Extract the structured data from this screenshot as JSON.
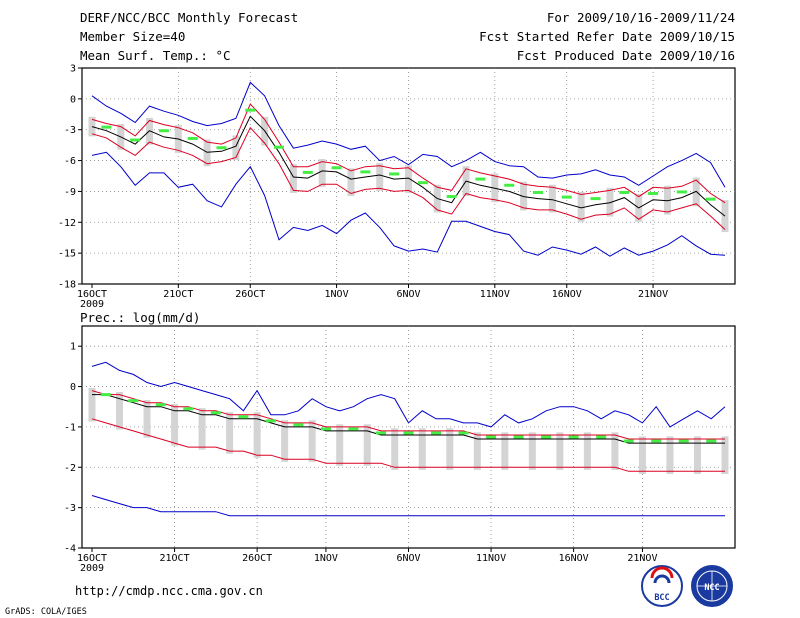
{
  "header": {
    "title": "DERF/NCC/BCC Monthly Forecast",
    "member_size": "Member Size=40",
    "variable": "Mean Surf. Temp.: °C",
    "period": "For 2009/10/16-2009/11/24",
    "started": "Fcst Started Refer Date 2009/10/15",
    "produced": "Fcst Produced Date 2009/10/16"
  },
  "footer": {
    "url": "http://cmdp.ncc.cma.gov.cn",
    "grads": "GrADS: COLA/IGES",
    "logo_bcc": "BCC",
    "logo_ncc": "NCC"
  },
  "colors": {
    "envelope": "#0000cc",
    "spread": "#dd0022",
    "mean": "#000000",
    "box": "#d4d4d4",
    "obs": "#44ee44",
    "grid": "#888888"
  },
  "chart_data": [
    {
      "type": "line",
      "title": "Mean Surf. Temp.: °C",
      "xlabel": "",
      "ylabel": "°C",
      "ylim": [
        -18,
        3
      ],
      "yticks": [
        "3",
        "0",
        "-3",
        "-6",
        "-9",
        "-12",
        "-15",
        "-18"
      ],
      "xticks": [
        "16OCT",
        "21OCT",
        "26OCT",
        "1NOV",
        "6NOV",
        "11NOV",
        "16NOV",
        "21NOV"
      ],
      "x_year": "2009",
      "grid": true,
      "days": 40,
      "series": [
        {
          "name": "max",
          "values": [
            0.3,
            -0.7,
            -1.4,
            -2.3,
            -0.7,
            -1.2,
            -1.6,
            -2.2,
            -2.6,
            -2.4,
            -1.9,
            1.6,
            0.3,
            -2.6,
            -4.8,
            -4.5,
            -4.1,
            -4.4,
            -4.9,
            -4.6,
            -6.0,
            -5.6,
            -6.4,
            -5.4,
            -5.6,
            -6.6,
            -6.0,
            -5.2,
            -6.1,
            -6.5,
            -6.6,
            -7.6,
            -7.7,
            -7.4,
            -7.3,
            -6.9,
            -7.4,
            -7.6,
            -8.4,
            -7.5,
            -6.6,
            -6.0,
            -5.3,
            -6.2,
            -8.6
          ]
        },
        {
          "name": "upper",
          "values": [
            -2.0,
            -2.4,
            -2.7,
            -3.6,
            -2.1,
            -2.5,
            -2.8,
            -3.3,
            -4.2,
            -4.4,
            -3.8,
            -0.5,
            -2.0,
            -4.2,
            -6.6,
            -6.6,
            -6.1,
            -6.3,
            -7.0,
            -6.6,
            -6.5,
            -6.8,
            -6.7,
            -7.7,
            -8.6,
            -8.9,
            -6.8,
            -7.2,
            -7.5,
            -7.8,
            -8.3,
            -8.5,
            -8.6,
            -8.9,
            -9.3,
            -9.1,
            -8.9,
            -8.6,
            -9.5,
            -8.6,
            -8.7,
            -8.5,
            -7.9,
            -9.2,
            -10.1
          ]
        },
        {
          "name": "mean",
          "values": [
            -2.7,
            -3.1,
            -3.7,
            -4.4,
            -3.1,
            -3.7,
            -3.9,
            -4.4,
            -5.2,
            -5.1,
            -4.6,
            -1.7,
            -3.1,
            -5.2,
            -7.6,
            -7.7,
            -7.0,
            -7.1,
            -7.8,
            -7.6,
            -7.4,
            -7.8,
            -7.7,
            -8.6,
            -9.7,
            -10.1,
            -8.0,
            -8.4,
            -8.7,
            -9.0,
            -9.5,
            -9.7,
            -9.8,
            -10.2,
            -10.6,
            -10.3,
            -10.1,
            -9.6,
            -10.6,
            -9.8,
            -9.9,
            -9.6,
            -9.0,
            -10.3,
            -11.4
          ]
        },
        {
          "name": "lower",
          "values": [
            -3.4,
            -3.8,
            -4.7,
            -5.5,
            -4.2,
            -4.7,
            -5.0,
            -5.5,
            -6.3,
            -6.1,
            -5.7,
            -2.8,
            -4.3,
            -6.3,
            -8.9,
            -9.0,
            -8.3,
            -8.3,
            -9.2,
            -8.8,
            -8.7,
            -9.0,
            -8.9,
            -9.6,
            -10.8,
            -11.2,
            -9.2,
            -9.6,
            -9.8,
            -10.1,
            -10.6,
            -10.8,
            -10.8,
            -11.2,
            -11.7,
            -11.3,
            -11.2,
            -10.6,
            -11.7,
            -10.8,
            -11.0,
            -10.6,
            -10.2,
            -11.4,
            -12.7
          ]
        },
        {
          "name": "min",
          "values": [
            -5.5,
            -5.2,
            -6.6,
            -8.4,
            -7.2,
            -7.2,
            -8.6,
            -8.3,
            -9.9,
            -10.5,
            -8.3,
            -6.6,
            -9.4,
            -13.7,
            -12.5,
            -12.8,
            -12.3,
            -13.1,
            -11.8,
            -11.1,
            -12.5,
            -14.3,
            -14.8,
            -14.6,
            -14.9,
            -11.9,
            -11.9,
            -12.4,
            -12.9,
            -13.2,
            -14.8,
            -15.2,
            -14.4,
            -14.7,
            -15.1,
            -14.4,
            -15.3,
            -14.5,
            -15.2,
            -14.8,
            -14.2,
            -13.3,
            -14.3,
            -15.1,
            -15.2
          ]
        }
      ]
    },
    {
      "type": "line",
      "title": "Prec.: log(mm/d)",
      "xlabel": "",
      "ylabel": "log(mm/d)",
      "ylim": [
        -4,
        1.5
      ],
      "yticks": [
        "1",
        "0",
        "-1",
        "-2",
        "-3",
        "-4"
      ],
      "xticks": [
        "16OCT",
        "21OCT",
        "26OCT",
        "1NOV",
        "6NOV",
        "11NOV",
        "16NOV",
        "21NOV"
      ],
      "x_year": "2009",
      "grid": true,
      "days": 40,
      "series": [
        {
          "name": "max",
          "values": [
            0.5,
            0.6,
            0.4,
            0.3,
            0.1,
            0.0,
            0.1,
            0.0,
            -0.1,
            -0.2,
            -0.3,
            -0.6,
            -0.1,
            -0.7,
            -0.7,
            -0.6,
            -0.3,
            -0.5,
            -0.6,
            -0.5,
            -0.3,
            -0.2,
            -0.3,
            -0.9,
            -0.6,
            -0.8,
            -0.8,
            -0.9,
            -0.9,
            -1.0,
            -0.7,
            -0.9,
            -0.8,
            -0.6,
            -0.5,
            -0.5,
            -0.6,
            -0.8,
            -0.6,
            -0.7,
            -0.9,
            -0.5,
            -1.0,
            -0.8,
            -0.6,
            -0.8,
            -0.5
          ]
        },
        {
          "name": "upper",
          "values": [
            -0.1,
            -0.2,
            -0.2,
            -0.3,
            -0.4,
            -0.4,
            -0.5,
            -0.5,
            -0.6,
            -0.6,
            -0.7,
            -0.7,
            -0.7,
            -0.8,
            -0.9,
            -0.9,
            -0.9,
            -1.0,
            -1.0,
            -1.0,
            -1.0,
            -1.1,
            -1.1,
            -1.1,
            -1.1,
            -1.1,
            -1.1,
            -1.1,
            -1.2,
            -1.2,
            -1.2,
            -1.2,
            -1.2,
            -1.2,
            -1.2,
            -1.2,
            -1.2,
            -1.2,
            -1.2,
            -1.3,
            -1.3,
            -1.3,
            -1.3,
            -1.3,
            -1.3,
            -1.3,
            -1.3
          ]
        },
        {
          "name": "mean",
          "values": [
            -0.2,
            -0.2,
            -0.3,
            -0.4,
            -0.5,
            -0.5,
            -0.6,
            -0.6,
            -0.7,
            -0.7,
            -0.8,
            -0.8,
            -0.8,
            -0.9,
            -1.0,
            -1.0,
            -1.0,
            -1.1,
            -1.1,
            -1.1,
            -1.1,
            -1.2,
            -1.2,
            -1.2,
            -1.2,
            -1.2,
            -1.2,
            -1.2,
            -1.3,
            -1.3,
            -1.3,
            -1.3,
            -1.3,
            -1.3,
            -1.3,
            -1.3,
            -1.3,
            -1.3,
            -1.3,
            -1.4,
            -1.4,
            -1.4,
            -1.4,
            -1.4,
            -1.4,
            -1.4,
            -1.4
          ]
        },
        {
          "name": "lower",
          "values": [
            -0.8,
            -0.9,
            -1.0,
            -1.1,
            -1.2,
            -1.3,
            -1.4,
            -1.5,
            -1.5,
            -1.5,
            -1.6,
            -1.6,
            -1.7,
            -1.7,
            -1.8,
            -1.8,
            -1.8,
            -1.9,
            -1.9,
            -1.9,
            -1.9,
            -1.9,
            -2.0,
            -2.0,
            -2.0,
            -2.0,
            -2.0,
            -2.0,
            -2.0,
            -2.0,
            -2.0,
            -2.0,
            -2.0,
            -2.0,
            -2.0,
            -2.0,
            -2.0,
            -2.0,
            -2.0,
            -2.1,
            -2.1,
            -2.1,
            -2.1,
            -2.1,
            -2.1,
            -2.1,
            -2.1
          ]
        },
        {
          "name": "min",
          "values": [
            -2.7,
            -2.8,
            -2.9,
            -3.0,
            -3.0,
            -3.1,
            -3.1,
            -3.1,
            -3.1,
            -3.1,
            -3.2,
            -3.2,
            -3.2,
            -3.2,
            -3.2,
            -3.2,
            -3.2,
            -3.2,
            -3.2,
            -3.2,
            -3.2,
            -3.2,
            -3.2,
            -3.2,
            -3.2,
            -3.2,
            -3.2,
            -3.2,
            -3.2,
            -3.2,
            -3.2,
            -3.2,
            -3.2,
            -3.2,
            -3.2,
            -3.2,
            -3.2,
            -3.2,
            -3.2,
            -3.2,
            -3.2,
            -3.2,
            -3.2,
            -3.2,
            -3.2,
            -3.2,
            -3.2
          ]
        }
      ]
    }
  ]
}
